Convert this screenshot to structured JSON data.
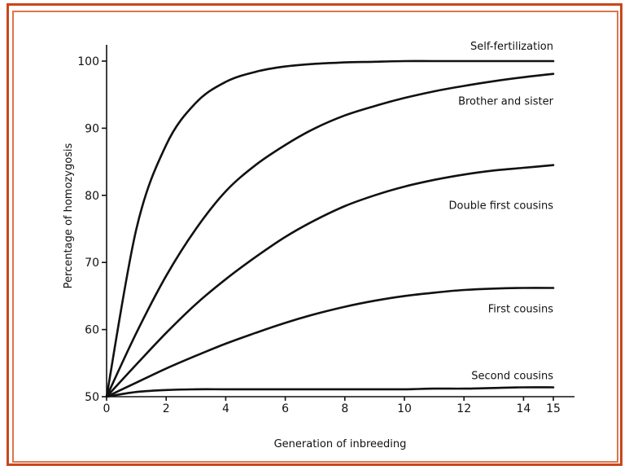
{
  "chart_data": {
    "type": "line",
    "title": "",
    "xlabel": "Generation of inbreeding",
    "ylabel": "Percentage of homozygosis",
    "xlim": [
      0,
      15
    ],
    "ylim": [
      50,
      100
    ],
    "x_ticks": [
      0,
      2,
      4,
      6,
      8,
      10,
      12,
      14,
      15
    ],
    "y_ticks": [
      50,
      60,
      70,
      80,
      90,
      100
    ],
    "grid": false,
    "legend": "inline-labels",
    "x": [
      0,
      1,
      2,
      3,
      4,
      5,
      6,
      7,
      8,
      9,
      10,
      11,
      12,
      13,
      14,
      15
    ],
    "series": [
      {
        "name": "Self-fertilization",
        "values": [
          50,
          75,
          87.5,
          93.8,
          96.9,
          98.4,
          99.2,
          99.6,
          99.8,
          99.9,
          100,
          100,
          100,
          100,
          100,
          100
        ]
      },
      {
        "name": "Brother and sister",
        "values": [
          50,
          59.5,
          68,
          75,
          80.6,
          84.5,
          87.5,
          90,
          91.9,
          93.3,
          94.5,
          95.5,
          96.3,
          97,
          97.6,
          98.1
        ]
      },
      {
        "name": "Double first cousins",
        "values": [
          50,
          54.8,
          59.5,
          63.8,
          67.5,
          70.8,
          73.8,
          76.3,
          78.4,
          80,
          81.3,
          82.3,
          83.1,
          83.7,
          84.1,
          84.5
        ]
      },
      {
        "name": "First cousins",
        "values": [
          50,
          52.1,
          54.2,
          56.1,
          57.9,
          59.5,
          61,
          62.3,
          63.4,
          64.3,
          65,
          65.5,
          65.9,
          66.1,
          66.2,
          66.2
        ]
      },
      {
        "name": "Second cousins",
        "values": [
          50,
          50.7,
          51,
          51.1,
          51.1,
          51.1,
          51.1,
          51.1,
          51.1,
          51.1,
          51.1,
          51.2,
          51.2,
          51.3,
          51.4,
          51.4
        ]
      }
    ]
  }
}
